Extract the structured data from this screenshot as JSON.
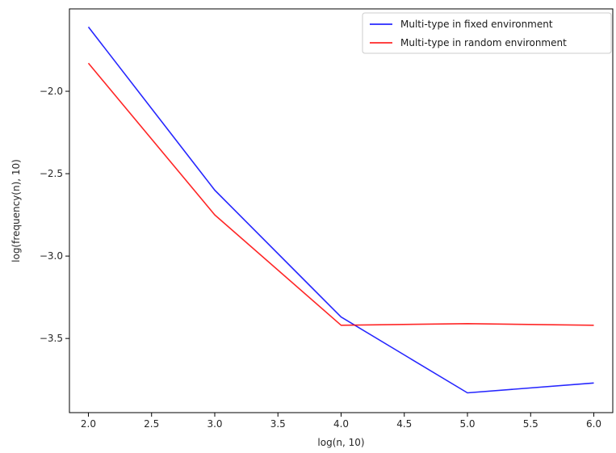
{
  "chart_data": {
    "type": "line",
    "title": "",
    "xlabel": "log(n, 10)",
    "ylabel": "log(frequency(n), 10)",
    "xlim": [
      1.85,
      6.15
    ],
    "ylim": [
      -3.95,
      -1.5
    ],
    "xticks": [
      2.0,
      2.5,
      3.0,
      3.5,
      4.0,
      4.5,
      5.0,
      5.5,
      6.0
    ],
    "xtick_labels": [
      "2.0",
      "2.5",
      "3.0",
      "3.5",
      "4.0",
      "4.5",
      "5.0",
      "5.5",
      "6.0"
    ],
    "yticks": [
      -2.0,
      -2.5,
      -3.0,
      -3.5
    ],
    "ytick_labels": [
      "−2.0",
      "−2.5",
      "−3.0",
      "−3.5"
    ],
    "grid": false,
    "legend_position": "top-right",
    "x": [
      2,
      3,
      4,
      5,
      6
    ],
    "series": [
      {
        "name": "Multi-type in fixed environment",
        "color": "#0000ff",
        "values": [
          -1.61,
          -2.6,
          -3.37,
          -3.83,
          -3.77
        ]
      },
      {
        "name": "Multi-type in random environment",
        "color": "#ff0000",
        "values": [
          -1.83,
          -2.75,
          -3.42,
          -3.41,
          -3.42
        ]
      }
    ]
  }
}
